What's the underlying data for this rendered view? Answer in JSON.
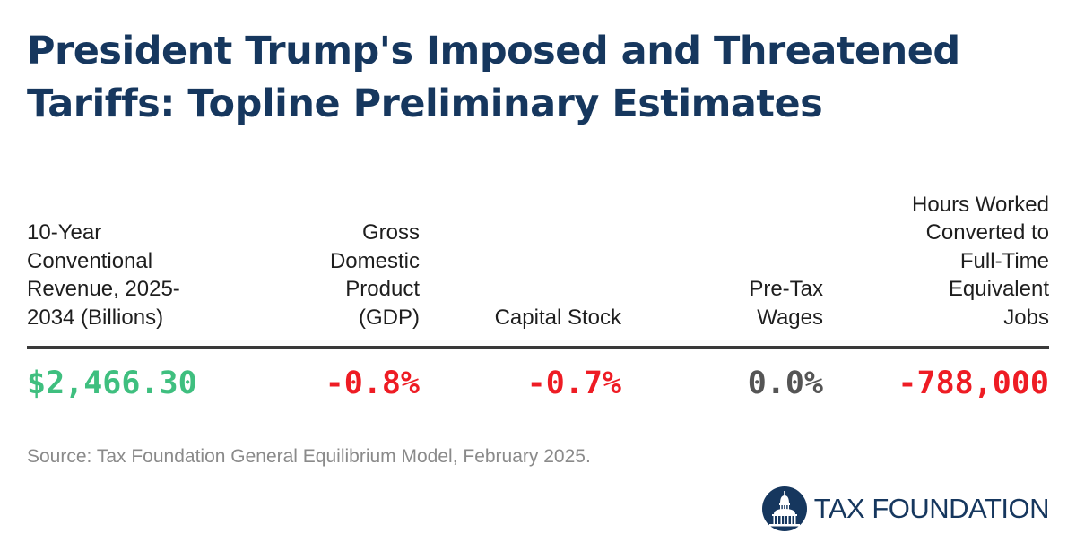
{
  "title_lines": [
    "President Trump's Imposed and Threatened",
    "Tariffs: Topline Preliminary Estimates"
  ],
  "chart_data": {
    "type": "table",
    "title": "President Trump's Imposed and Threatened Tariffs: Topline Preliminary Estimates",
    "columns": [
      {
        "header_lines": [
          "10-Year",
          "Conventional",
          "Revenue, 2025-",
          "2034 (Billions)"
        ],
        "value": 2466.3,
        "display": "$2,466.30",
        "color": "#3fbf7f"
      },
      {
        "header_lines": [
          "Gross",
          "Domestic",
          "Product",
          "(GDP)"
        ],
        "value": -0.8,
        "display": "-0.8%",
        "color": "#ee1c24"
      },
      {
        "header_lines": [
          "Capital Stock"
        ],
        "value": -0.7,
        "display": "-0.7%",
        "color": "#ee1c24"
      },
      {
        "header_lines": [
          "Pre-Tax",
          "Wages"
        ],
        "value": 0.0,
        "display": "0.0%",
        "color": "#555555"
      },
      {
        "header_lines": [
          "Hours Worked",
          "Converted to",
          "Full-Time",
          "Equivalent",
          "Jobs"
        ],
        "value": -788000,
        "display": "-788,000",
        "color": "#ee1c24"
      }
    ]
  },
  "source": "Source: Tax Foundation General Equilibrium Model, February 2025.",
  "brand": {
    "name": "TAX FOUNDATION",
    "logo_icon": "capitol-dome-icon",
    "color": "#16375e"
  }
}
